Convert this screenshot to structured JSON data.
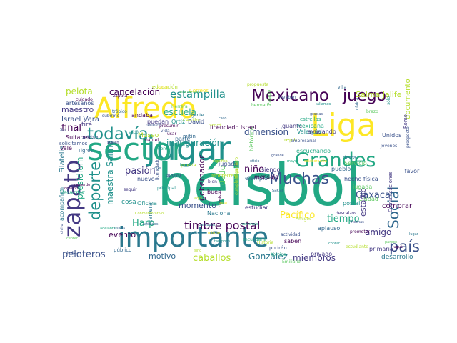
{
  "palette": {
    "c1": "#440154",
    "c2": "#3b528b",
    "c3": "#21918c",
    "c4": "#2a788e",
    "c5": "#22a884",
    "c6": "#5ec962",
    "c7": "#b5de2b",
    "c8": "#fde725",
    "c9": "#31688e",
    "c10": "#443983"
  },
  "words": [
    {
      "text": "béisbol",
      "color": "c5"
    },
    {
      "text": "jugar",
      "color": "c3"
    },
    {
      "text": "sector",
      "color": "c5"
    },
    {
      "text": "Liga",
      "color": "c8"
    },
    {
      "text": "Alfredo",
      "color": "c8"
    },
    {
      "text": "importante",
      "color": "c4"
    },
    {
      "text": "zapato",
      "color": "c10"
    },
    {
      "text": "Grandes",
      "color": "c5"
    },
    {
      "text": "todavía",
      "color": "c3"
    },
    {
      "text": "deporte",
      "color": "c3"
    },
    {
      "text": "Mexicano",
      "color": "c1"
    },
    {
      "text": "Muchas",
      "color": "c2"
    },
    {
      "text": "juego",
      "color": "c1"
    },
    {
      "text": "Social",
      "color": "c9"
    },
    {
      "text": "país",
      "color": "c2"
    },
    {
      "text": "timbre postal",
      "color": "c1"
    },
    {
      "text": "estampilla",
      "color": "c3"
    },
    {
      "text": "caballos",
      "color": "c7"
    },
    {
      "text": "González",
      "color": "c4"
    },
    {
      "text": "miembros",
      "color": "c10"
    },
    {
      "text": "Pacífico",
      "color": "c8"
    },
    {
      "text": "tiempo",
      "color": "c5"
    },
    {
      "text": "Oaxaca",
      "color": "c2"
    },
    {
      "text": "estadio",
      "color": "c10"
    },
    {
      "text": "amigo",
      "color": "c10"
    },
    {
      "text": "cancelación",
      "color": "c1"
    },
    {
      "text": "pelota",
      "color": "c7"
    },
    {
      "text": "escuela",
      "color": "c5"
    },
    {
      "text": "dimensión",
      "color": "c2"
    },
    {
      "text": "inauguración",
      "color": "c3"
    },
    {
      "text": "pasión",
      "color": "c10"
    },
    {
      "text": "niño",
      "color": "c1"
    },
    {
      "text": "maestra Salma",
      "color": "c3"
    },
    {
      "text": "presidium",
      "color": "c5"
    },
    {
      "text": "peloteros",
      "color": "c2"
    },
    {
      "text": "Harp",
      "color": "c5"
    },
    {
      "text": "evento",
      "color": "c1"
    },
    {
      "text": "gobernador",
      "color": "c1"
    },
    {
      "text": "momento",
      "color": "c2"
    },
    {
      "text": "motivo",
      "color": "c9"
    },
    {
      "text": "dedo",
      "color": "c6"
    },
    {
      "text": "Salma Jalife",
      "color": "c7"
    },
    {
      "text": "maestro",
      "color": "c10"
    },
    {
      "text": "Israel Vera",
      "color": "c2"
    },
    {
      "text": "final",
      "color": "c1"
    },
    {
      "text": "Filatelia",
      "color": "c4"
    },
    {
      "text": "documento",
      "color": "c7"
    },
    {
      "text": "Ciudad",
      "color": "c6"
    },
    {
      "text": "Unidos",
      "color": "c2"
    },
    {
      "text": "favor",
      "color": "c2"
    },
    {
      "text": "comprar",
      "color": "c1"
    },
    {
      "text": "primaria",
      "color": "c10"
    },
    {
      "text": "desarrollo",
      "color": "c4"
    },
    {
      "text": "privado",
      "color": "c10"
    },
    {
      "text": "jugada",
      "color": "c6"
    },
    {
      "text": "hecho física",
      "color": "c2"
    },
    {
      "text": "postal",
      "color": "c3"
    },
    {
      "text": "pueblo",
      "color": "c9"
    },
    {
      "text": "licenciado Israel",
      "color": "c1"
    },
    {
      "text": "jugado",
      "color": "c2"
    },
    {
      "text": "cosa",
      "color": "c3"
    },
    {
      "text": "Oficina",
      "color": "c3"
    },
    {
      "text": "carrera",
      "color": "c4"
    },
    {
      "text": "Nacional",
      "color": "c4"
    },
    {
      "text": "estudiar",
      "color": "c10"
    },
    {
      "text": "buen",
      "color": "c1"
    },
    {
      "text": "saben",
      "color": "c1"
    },
    {
      "text": "aplauso",
      "color": "c9"
    },
    {
      "text": "ejemplo",
      "color": "c9"
    },
    {
      "text": "Servicio",
      "color": "c6"
    },
    {
      "text": "nuevo",
      "color": "c2"
    },
    {
      "text": "Museo",
      "color": "c7"
    },
    {
      "text": "tiré",
      "color": "c10"
    },
    {
      "text": "andaba",
      "color": "c1"
    },
    {
      "text": "puedan",
      "color": "c10"
    },
    {
      "text": "Ortiz",
      "color": "c3"
    },
    {
      "text": "David",
      "color": "c2"
    },
    {
      "text": "parte",
      "color": "c9"
    },
    {
      "text": "histórico",
      "color": "c6"
    },
    {
      "text": "guante",
      "color": "c10"
    },
    {
      "text": "Valencia",
      "color": "c3"
    },
    {
      "text": "Mexicana",
      "color": "c5"
    },
    {
      "text": "ayudando",
      "color": "c10"
    },
    {
      "text": "escuchando",
      "color": "c5"
    },
    {
      "text": "Correos",
      "color": "c8"
    },
    {
      "text": "artesanos",
      "color": "c2"
    },
    {
      "text": "Sultanes",
      "color": "c1"
    },
    {
      "text": "solicitamos",
      "color": "c2"
    },
    {
      "text": "Adrián",
      "color": "c2"
    },
    {
      "text": "Vale",
      "color": "c1"
    },
    {
      "text": "Veracruz",
      "color": "c5"
    },
    {
      "text": "acompañan",
      "color": "c4"
    },
    {
      "text": "público",
      "color": "c9"
    },
    {
      "text": "siendo",
      "color": "c10"
    },
    {
      "text": "mensaje",
      "color": "c1"
    },
    {
      "text": "estrellas",
      "color": "c5"
    },
    {
      "text": "Comunicaciones",
      "color": "c10"
    },
    {
      "text": "tierra",
      "color": "c4"
    },
    {
      "text": "usar",
      "color": "c1"
    },
    {
      "text": "Tigres",
      "color": "c9"
    },
    {
      "text": "apoyo",
      "color": "c2"
    },
    {
      "text": "Monterrey",
      "color": "c7"
    },
    {
      "text": "educación",
      "color": "c7"
    },
    {
      "text": "mitin",
      "color": "c9"
    },
    {
      "text": "repito",
      "color": "c7"
    },
    {
      "text": "Romo",
      "color": "c10"
    },
    {
      "text": "seguir",
      "color": "c10"
    },
    {
      "text": "licenciado",
      "color": "c2"
    },
    {
      "text": "podrán",
      "color": "c2"
    },
    {
      "text": "torcida",
      "color": "c5"
    },
    {
      "text": "Emiliano",
      "color": "c6"
    },
    {
      "text": "zapata",
      "color": "c1"
    },
    {
      "text": "propuesta",
      "color": "c7"
    },
    {
      "text": "ingeniero",
      "color": "c7"
    },
    {
      "text": "mantel",
      "color": "c1"
    },
    {
      "text": "actividad",
      "color": "c2"
    },
    {
      "text": "Amigos",
      "color": "c7"
    },
    {
      "text": "Palacio",
      "color": "c6"
    },
    {
      "text": "Historia",
      "color": "c7"
    },
    {
      "text": "llevaban",
      "color": "c2"
    },
    {
      "text": "brazo",
      "color": "c6"
    },
    {
      "text": "Jóvenes",
      "color": "c2"
    },
    {
      "text": "prospecto",
      "color": "c2"
    },
    {
      "text": "principal",
      "color": "c3"
    },
    {
      "text": "cumpleaños",
      "color": "c7"
    },
    {
      "text": "sacar",
      "color": "c9"
    },
    {
      "text": "camisa",
      "color": "c1"
    },
    {
      "text": "secundaria",
      "color": "c5"
    },
    {
      "text": "promotor",
      "color": "c1"
    },
    {
      "text": "empresarial",
      "color": "c2"
    },
    {
      "text": "descalzos",
      "color": "c10"
    },
    {
      "text": "estudiante",
      "color": "c7"
    },
    {
      "text": "villa",
      "color": "c9"
    },
    {
      "text": "cívica",
      "color": "c9"
    },
    {
      "text": "sólo",
      "color": "c3"
    },
    {
      "text": "gente",
      "color": "c4"
    },
    {
      "text": "hermano",
      "color": "c6"
    },
    {
      "text": "Castillo",
      "color": "c7"
    },
    {
      "text": "Herrera",
      "color": "c6"
    },
    {
      "text": "presumir",
      "color": "c1"
    },
    {
      "text": "vida",
      "color": "c2"
    },
    {
      "text": "sirve",
      "color": "c8"
    },
    {
      "text": "reunión",
      "color": "c2"
    },
    {
      "text": "trópico",
      "color": "c9"
    },
    {
      "text": "Sur",
      "color": "c2"
    },
    {
      "text": "ocasión",
      "color": "c1"
    },
    {
      "text": "dicho",
      "color": "c2"
    },
    {
      "text": "center",
      "color": "c6"
    },
    {
      "text": "deslizo",
      "color": "c2"
    },
    {
      "text": "adelante",
      "color": "c5"
    },
    {
      "text": "Conmemorativo",
      "color": "c7"
    },
    {
      "text": "articulos",
      "color": "c9"
    },
    {
      "text": "usaba",
      "color": "c9"
    },
    {
      "text": "aquí",
      "color": "c7"
    },
    {
      "text": "pesa",
      "color": "c8"
    },
    {
      "text": "hechas",
      "color": "c2"
    },
    {
      "text": "jugué",
      "color": "c1"
    },
    {
      "text": "parece",
      "color": "c6"
    },
    {
      "text": "contar",
      "color": "c3"
    },
    {
      "text": "lugar",
      "color": "c4"
    },
    {
      "text": "sino",
      "color": "c7"
    },
    {
      "text": "tampoco",
      "color": "c3"
    },
    {
      "text": "mismo",
      "color": "c8"
    },
    {
      "text": "particular",
      "color": "c4"
    },
    {
      "text": "homenaje",
      "color": "c5"
    },
    {
      "text": "significa",
      "color": "c7"
    },
    {
      "text": "momentos",
      "color": "c6"
    },
    {
      "text": "fabricó",
      "color": "c7"
    },
    {
      "text": "caso",
      "color": "c9"
    },
    {
      "text": "gracias",
      "color": "c2"
    },
    {
      "text": "tallamos",
      "color": "c3"
    },
    {
      "text": "suelen",
      "color": "c10"
    },
    {
      "text": "recuerdo",
      "color": "c1"
    },
    {
      "text": "dije",
      "color": "c9"
    },
    {
      "text": "grande",
      "color": "c2"
    },
    {
      "text": "mayor",
      "color": "c5"
    },
    {
      "text": "colaboración",
      "color": "c8"
    },
    {
      "text": "oficio",
      "color": "c9"
    },
    {
      "text": "cuidado",
      "color": "c1"
    },
    {
      "text": "subirme",
      "color": "c2"
    },
    {
      "text": "sacó",
      "color": "c3"
    },
    {
      "text": "pobre",
      "color": "c5"
    },
    {
      "text": "puesta",
      "color": "c7"
    },
    {
      "text": "bien",
      "color": "c10"
    }
  ]
}
